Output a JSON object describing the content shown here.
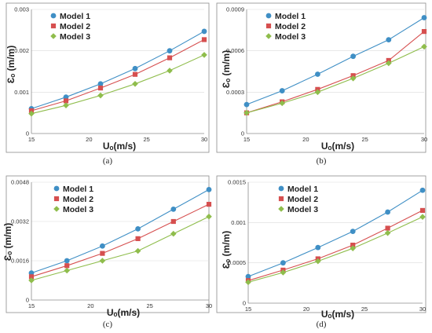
{
  "chart_data": [
    {
      "type": "line",
      "caption": "(a)",
      "xlabel": "Uₒ(m/s)",
      "ylabel": "Ɛₒ (m/m)",
      "xlim": [
        15,
        30
      ],
      "ylim": [
        0,
        0.003
      ],
      "xticks": [
        15,
        20,
        25,
        30
      ],
      "xtick_labels": [
        "15",
        "20",
        "25",
        "30"
      ],
      "yticks": [
        0,
        0.001,
        0.002,
        0.003
      ],
      "ytick_labels": [
        "0",
        "0.001",
        "0.002",
        "0.003"
      ],
      "grid": "horizontal",
      "legend": "top-left",
      "x": [
        15,
        18,
        21,
        24,
        27,
        30
      ],
      "series": [
        {
          "name": "Model 1",
          "values": [
            0.0006,
            0.00088,
            0.0012,
            0.00157,
            0.002,
            0.00247
          ]
        },
        {
          "name": "Model 2",
          "values": [
            0.00055,
            0.00079,
            0.0011,
            0.00143,
            0.00183,
            0.00227
          ]
        },
        {
          "name": "Model 3",
          "values": [
            0.00048,
            0.00068,
            0.00092,
            0.0012,
            0.00152,
            0.0019
          ]
        }
      ]
    },
    {
      "type": "line",
      "caption": "(b)",
      "xlabel": "Uₒ(m/s)",
      "ylabel": "Ɛₒ (m/m)",
      "xlim": [
        15,
        30
      ],
      "ylim": [
        0,
        0.0009
      ],
      "xticks": [
        15,
        20,
        25,
        30
      ],
      "xtick_labels": [
        "15",
        "20",
        "25",
        "30"
      ],
      "yticks": [
        0,
        0.0003,
        0.0006,
        0.0009
      ],
      "ytick_labels": [
        "0",
        "0.0003",
        "0.0006",
        "0.0009"
      ],
      "grid": "horizontal",
      "legend": "top-left",
      "x": [
        15,
        18,
        21,
        24,
        27,
        30
      ],
      "series": [
        {
          "name": "Model 1",
          "values": [
            0.00021,
            0.00031,
            0.00043,
            0.00056,
            0.00068,
            0.00084
          ]
        },
        {
          "name": "Model 2",
          "values": [
            0.00015,
            0.00023,
            0.00032,
            0.00042,
            0.00053,
            0.00074
          ]
        },
        {
          "name": "Model 3",
          "values": [
            0.00015,
            0.00022,
            0.0003,
            0.0004,
            0.00051,
            0.00063
          ]
        }
      ]
    },
    {
      "type": "line",
      "caption": "(c)",
      "xlabel": "Uₒ(m/s)",
      "ylabel": "Ɛₒ (m/m)",
      "xlim": [
        15,
        30
      ],
      "ylim": [
        0,
        0.0048
      ],
      "xticks": [
        15,
        20,
        25,
        30
      ],
      "xtick_labels": [
        "15",
        "20",
        "25",
        "30"
      ],
      "yticks": [
        0,
        0.0016,
        0.0032,
        0.0048
      ],
      "ytick_labels": [
        "0",
        "0.0016",
        "0.0032",
        "0.0048"
      ],
      "grid": "horizontal",
      "legend": "top-left",
      "x": [
        15,
        18,
        21,
        24,
        27,
        30
      ],
      "series": [
        {
          "name": "Model 1",
          "values": [
            0.0011,
            0.0016,
            0.0022,
            0.0029,
            0.0037,
            0.0045
          ]
        },
        {
          "name": "Model 2",
          "values": [
            0.00095,
            0.0014,
            0.0019,
            0.0025,
            0.0032,
            0.0039
          ]
        },
        {
          "name": "Model 3",
          "values": [
            0.0008,
            0.0012,
            0.0016,
            0.002,
            0.0027,
            0.0034
          ]
        }
      ]
    },
    {
      "type": "line",
      "caption": "(d)",
      "xlabel": "Uₒ(m/s)",
      "ylabel": "Ɛₒ (m/m)",
      "xlim": [
        15,
        30
      ],
      "ylim": [
        0,
        0.0015
      ],
      "xticks": [
        15,
        20,
        25,
        30
      ],
      "xtick_labels": [
        "15",
        "20",
        "25",
        "30"
      ],
      "yticks": [
        0,
        0.0005,
        0.001,
        0.0015
      ],
      "ytick_labels": [
        "0",
        "0.0005",
        "0.001",
        "0.0015"
      ],
      "grid": "horizontal",
      "legend": "top-left",
      "x": [
        15,
        18,
        21,
        24,
        27,
        30
      ],
      "series": [
        {
          "name": "Model 1",
          "values": [
            0.00033,
            0.0005,
            0.00069,
            0.00089,
            0.00113,
            0.0014
          ]
        },
        {
          "name": "Model 2",
          "values": [
            0.00028,
            0.00041,
            0.00055,
            0.00072,
            0.00093,
            0.00115
          ]
        },
        {
          "name": "Model 3",
          "values": [
            0.00026,
            0.00038,
            0.00052,
            0.00068,
            0.00087,
            0.00107
          ]
        }
      ]
    }
  ],
  "series_colors": [
    "#3f8fc5",
    "#d64f4f",
    "#8fbd4c"
  ],
  "series_markers": [
    "circle",
    "square",
    "diamond"
  ],
  "gridline_color": "#d9d9d9"
}
